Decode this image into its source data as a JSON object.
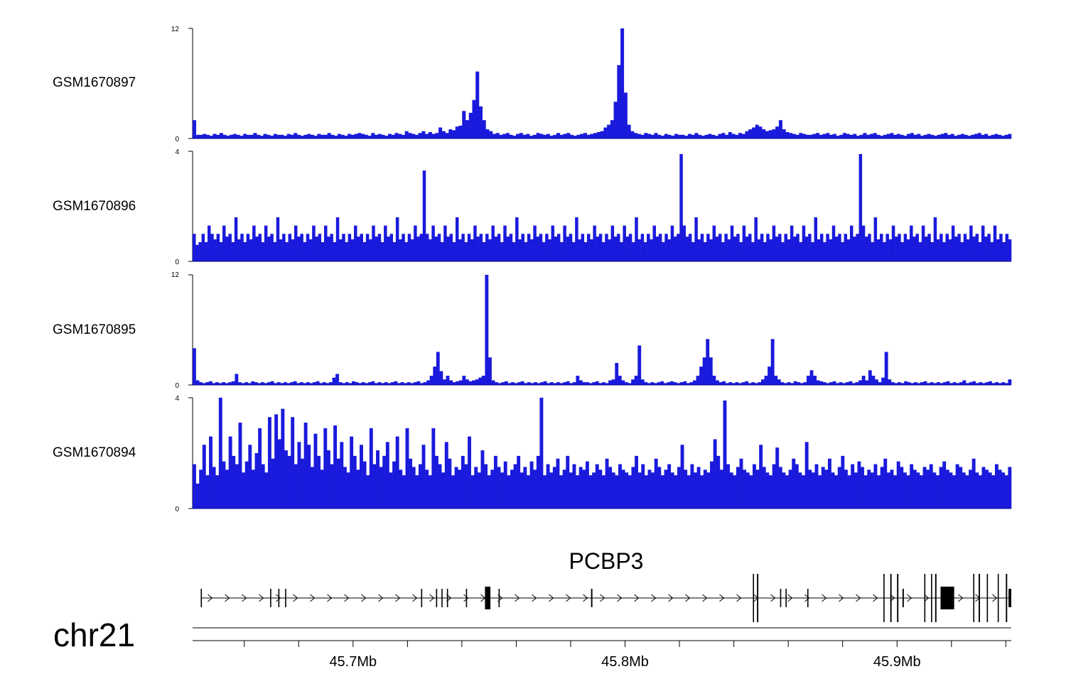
{
  "chart_data": {
    "type": "area",
    "title": "",
    "chromosome": "chr21",
    "region_mb": [
      45.641,
      45.942
    ],
    "bin_mb": 0.0015,
    "fill_color": "#1a1adc",
    "stroke_color": "#00008b",
    "tracks": [
      {
        "name": "GSM1670897",
        "ylim": [
          0,
          12
        ],
        "ytick_labels": [
          "12",
          "0"
        ],
        "values": [
          2,
          0.4,
          0.4,
          0.5,
          0.4,
          0.3,
          0.5,
          0.4,
          0.6,
          0.4,
          0.3,
          0.4,
          0.5,
          0.4,
          0.3,
          0.5,
          0.4,
          0.4,
          0.6,
          0.4,
          0.3,
          0.5,
          0.4,
          0.3,
          0.5,
          0.4,
          0.4,
          0.3,
          0.5,
          0.4,
          0.6,
          0.4,
          0.3,
          0.4,
          0.5,
          0.4,
          0.3,
          0.5,
          0.4,
          0.4,
          0.6,
          0.4,
          0.3,
          0.5,
          0.4,
          0.3,
          0.5,
          0.4,
          0.5,
          0.6,
          0.5,
          0.4,
          0.3,
          0.6,
          0.4,
          0.5,
          0.4,
          0.3,
          0.5,
          0.4,
          0.6,
          0.5,
          0.4,
          0.8,
          0.6,
          0.5,
          0.4,
          0.6,
          0.8,
          0.5,
          0.7,
          0.5,
          0.6,
          1.2,
          0.8,
          0.6,
          1,
          0.9,
          1.3,
          1.4,
          3,
          2,
          2.8,
          4.2,
          7.3,
          3.5,
          2,
          1,
          0.8,
          0.5,
          0.6,
          0.4,
          0.5,
          0.6,
          0.4,
          0.3,
          0.5,
          0.6,
          0.4,
          0.5,
          0.3,
          0.4,
          0.6,
          0.5,
          0.4,
          0.5,
          0.3,
          0.4,
          0.6,
          0.4,
          0.5,
          0.6,
          0.4,
          0.3,
          0.4,
          0.5,
          0.6,
          0.4,
          0.5,
          0.6,
          0.7,
          0.8,
          1.2,
          1.5,
          2,
          4,
          8,
          12,
          5,
          1.5,
          0.8,
          0.6,
          0.5,
          0.4,
          0.6,
          0.5,
          0.4,
          0.6,
          0.4,
          0.3,
          0.5,
          0.4,
          0.3,
          0.5,
          0.4,
          0.4,
          0.3,
          0.5,
          0.4,
          0.6,
          0.4,
          0.3,
          0.4,
          0.5,
          0.4,
          0.3,
          0.5,
          0.6,
          0.4,
          0.7,
          0.5,
          0.4,
          0.6,
          0.5,
          0.8,
          1,
          1.2,
          1.5,
          1.3,
          1,
          0.8,
          0.9,
          1,
          1.3,
          2,
          1,
          0.7,
          0.6,
          0.5,
          0.4,
          0.6,
          0.5,
          0.4,
          0.4,
          0.5,
          0.6,
          0.4,
          0.5,
          0.6,
          0.4,
          0.5,
          0.3,
          0.4,
          0.6,
          0.5,
          0.4,
          0.5,
          0.3,
          0.4,
          0.6,
          0.4,
          0.5,
          0.6,
          0.4,
          0.3,
          0.4,
          0.5,
          0.6,
          0.4,
          0.5,
          0.4,
          0.3,
          0.5,
          0.6,
          0.4,
          0.5,
          0.3,
          0.4,
          0.5,
          0.4,
          0.3,
          0.4,
          0.5,
          0.6,
          0.4,
          0.5,
          0.3,
          0.4,
          0.5,
          0.4,
          0.3,
          0.4,
          0.5,
          0.6,
          0.4,
          0.5,
          0.3,
          0.4,
          0.5,
          0.4,
          0.3,
          0.4,
          0.5
        ]
      },
      {
        "name": "GSM1670896",
        "ylim": [
          0,
          4
        ],
        "ytick_labels": [
          "4",
          "0"
        ],
        "values": [
          1,
          0.6,
          0.7,
          1,
          0.7,
          1.3,
          1,
          0.8,
          1,
          0.7,
          1.3,
          0.9,
          1,
          0.7,
          1.6,
          0.8,
          1,
          0.7,
          1,
          0.8,
          1.3,
          0.9,
          1,
          0.7,
          1.3,
          0.9,
          1,
          0.7,
          1.6,
          0.8,
          1,
          0.7,
          1,
          0.8,
          1.3,
          0.9,
          1,
          0.7,
          1,
          0.8,
          1.3,
          0.9,
          1,
          0.7,
          1.3,
          0.9,
          1,
          0.7,
          1.6,
          0.8,
          1,
          0.7,
          1,
          0.8,
          1.3,
          0.9,
          1,
          0.7,
          1,
          0.8,
          1.3,
          0.9,
          1,
          0.7,
          1.3,
          0.9,
          1,
          0.7,
          1.6,
          0.8,
          1,
          0.7,
          1,
          0.8,
          1.3,
          0.9,
          1,
          3.3,
          1,
          0.8,
          1.3,
          0.9,
          1,
          0.7,
          1.3,
          0.9,
          1,
          0.7,
          1.6,
          0.8,
          1,
          0.7,
          1,
          0.8,
          1.3,
          0.9,
          1,
          0.7,
          1,
          0.8,
          1.3,
          0.9,
          1,
          0.7,
          1.3,
          0.9,
          1,
          0.7,
          1.6,
          0.8,
          1,
          0.7,
          1,
          0.8,
          1.3,
          0.9,
          1,
          0.7,
          1,
          0.8,
          1.3,
          0.9,
          1,
          0.7,
          1.3,
          0.9,
          1,
          0.7,
          1.6,
          0.8,
          1,
          0.7,
          1,
          0.8,
          1.3,
          0.9,
          1,
          0.7,
          1,
          0.8,
          1.3,
          0.9,
          1,
          0.7,
          1.3,
          0.9,
          1,
          0.7,
          1.6,
          0.8,
          1,
          0.7,
          1,
          0.8,
          1.3,
          0.9,
          1,
          0.7,
          1,
          0.8,
          1.3,
          0.9,
          1,
          3.9,
          1.3,
          0.9,
          1,
          0.7,
          1.6,
          0.8,
          1,
          0.7,
          1,
          0.8,
          1.3,
          0.9,
          1,
          0.7,
          1,
          0.8,
          1.3,
          0.9,
          1,
          0.7,
          1.3,
          0.9,
          1,
          0.7,
          1.6,
          0.8,
          1,
          0.7,
          1,
          0.8,
          1.3,
          0.9,
          1,
          0.7,
          1,
          0.8,
          1.3,
          0.9,
          1,
          0.7,
          1.3,
          0.9,
          1,
          0.7,
          1.6,
          0.8,
          1,
          0.7,
          1,
          0.8,
          1.3,
          0.9,
          1,
          0.7,
          1,
          0.8,
          1.3,
          0.9,
          1,
          3.9,
          1.3,
          0.9,
          1,
          0.7,
          1.6,
          0.8,
          1,
          0.7,
          1,
          0.8,
          1.3,
          0.9,
          1,
          0.7,
          1,
          0.8,
          1.3,
          0.9,
          1,
          0.7,
          1.3,
          0.9,
          1,
          0.7,
          1.6,
          0.8,
          1,
          0.7,
          1,
          0.8,
          1.3,
          0.9,
          1,
          0.7,
          1,
          0.8,
          1.3,
          0.9,
          1,
          0.7,
          1.3,
          0.9,
          1,
          0.7,
          1.3,
          0.8,
          1,
          0.7,
          1,
          0.8
        ]
      },
      {
        "name": "GSM1670895",
        "ylim": [
          0,
          12
        ],
        "ytick_labels": [
          "12",
          "0"
        ],
        "values": [
          4,
          0.5,
          0.3,
          0.2,
          0.3,
          0.4,
          0.2,
          0.3,
          0.2,
          0.3,
          0.2,
          0.3,
          0.4,
          1.2,
          0.3,
          0.2,
          0.3,
          0.2,
          0.4,
          0.3,
          0.2,
          0.3,
          0.2,
          0.3,
          0.4,
          0.2,
          0.3,
          0.2,
          0.3,
          0.2,
          0.3,
          0.4,
          0.2,
          0.3,
          0.2,
          0.3,
          0.2,
          0.3,
          0.4,
          0.2,
          0.3,
          0.2,
          0.3,
          0.8,
          1.2,
          0.3,
          0.2,
          0.3,
          0.2,
          0.4,
          0.3,
          0.2,
          0.3,
          0.2,
          0.3,
          0.4,
          0.2,
          0.3,
          0.2,
          0.3,
          0.2,
          0.3,
          0.4,
          0.2,
          0.3,
          0.2,
          0.3,
          0.2,
          0.3,
          0.4,
          0.2,
          0.3,
          0.5,
          1,
          2,
          3.6,
          1.5,
          0.6,
          1,
          0.5,
          0.3,
          0.4,
          0.5,
          1,
          0.6,
          0.4,
          0.5,
          0.6,
          0.8,
          1,
          12,
          3,
          0.5,
          0.3,
          0.2,
          0.3,
          0.4,
          0.2,
          0.3,
          0.2,
          0.3,
          0.4,
          0.2,
          0.3,
          0.2,
          0.3,
          0.2,
          0.3,
          0.4,
          0.2,
          0.3,
          0.2,
          0.3,
          0.2,
          0.3,
          0.4,
          0.2,
          0.3,
          1,
          0.5,
          0.3,
          0.3,
          0.2,
          0.3,
          0.4,
          0.2,
          0.3,
          0.2,
          0.5,
          0.6,
          2.4,
          1,
          0.5,
          0.3,
          0.2,
          0.6,
          1,
          4.3,
          0.6,
          0.3,
          0.2,
          0.3,
          0.2,
          0.3,
          0.4,
          0.2,
          0.3,
          0.4,
          0.3,
          0.2,
          0.3,
          0.4,
          0.2,
          0.3,
          0.5,
          1,
          2,
          3,
          5,
          3,
          1,
          0.5,
          0.3,
          0.4,
          0.2,
          0.3,
          0.2,
          0.3,
          0.2,
          0.3,
          0.4,
          0.2,
          0.3,
          0.2,
          0.3,
          0.6,
          1,
          2,
          5,
          1,
          0.6,
          0.3,
          0.2,
          0.3,
          0.2,
          0.4,
          0.3,
          0.2,
          0.3,
          1,
          1.6,
          1,
          0.5,
          0.4,
          0.3,
          0.2,
          0.3,
          0.4,
          0.2,
          0.3,
          0.2,
          0.3,
          0.4,
          0.2,
          0.3,
          0.5,
          1,
          0.5,
          1.6,
          1,
          0.6,
          0.3,
          0.8,
          3.6,
          0.6,
          0.3,
          0.2,
          0.3,
          0.2,
          0.4,
          0.3,
          0.2,
          0.3,
          0.2,
          0.3,
          0.4,
          0.2,
          0.3,
          0.2,
          0.3,
          0.2,
          0.3,
          0.4,
          0.2,
          0.3,
          0.2,
          0.3,
          0.5,
          0.2,
          0.3,
          0.4,
          0.2,
          0.3,
          0.2,
          0.3,
          0.4,
          0.2,
          0.3,
          0.2,
          0.3,
          0.2,
          0.6
        ]
      },
      {
        "name": "GSM1670894",
        "ylim": [
          0,
          4
        ],
        "ytick_labels": [
          "4",
          "0"
        ],
        "values": [
          1.6,
          0.9,
          1.4,
          2.3,
          1.2,
          2.6,
          1.5,
          1.2,
          4,
          1.7,
          1.4,
          2.6,
          1.9,
          1.6,
          3.1,
          1.3,
          1.7,
          2.3,
          1.4,
          2,
          2.9,
          1.6,
          1.3,
          3.3,
          1.8,
          3.4,
          2.5,
          3.6,
          2.1,
          1.9,
          3.3,
          1.6,
          2.4,
          1.8,
          3.1,
          2.3,
          1.5,
          2.7,
          1.9,
          1.4,
          2.9,
          2.1,
          1.6,
          3,
          1.8,
          2.4,
          1.5,
          1.3,
          2.6,
          1.9,
          1.4,
          2.3,
          1.7,
          1.2,
          2.9,
          1.6,
          2.1,
          1.5,
          1.9,
          2.4,
          1.3,
          1.7,
          2.6,
          1.4,
          1.2,
          2.9,
          1.8,
          1.5,
          1.2,
          1.6,
          2.3,
          1.4,
          1.2,
          2.9,
          1.9,
          1.6,
          1.3,
          2.4,
          1.8,
          1.2,
          1.5,
          1.4,
          1.9,
          1.6,
          2.6,
          1.2,
          1.5,
          1.3,
          2.1,
          1.6,
          1.2,
          1.4,
          1.9,
          1.5,
          1.3,
          1.7,
          1.2,
          1.4,
          1.6,
          1.9,
          1.3,
          1.5,
          1.2,
          1.7,
          1.4,
          1.9,
          4,
          1.2,
          1.6,
          1.3,
          1.5,
          1.8,
          1.2,
          1.4,
          1.9,
          1.3,
          1.6,
          1.2,
          1.5,
          1.4,
          1.7,
          1.2,
          1.3,
          1.6,
          1.4,
          1.2,
          1.8,
          1.5,
          1.3,
          1.2,
          1.6,
          1.4,
          1.3,
          1.2,
          1.5,
          1.9,
          1.3,
          1.6,
          1.2,
          1.4,
          1.3,
          1.8,
          1.5,
          1.2,
          1.4,
          1.6,
          1.3,
          1.2,
          1.5,
          2.3,
          1.4,
          1.2,
          1.6,
          1.3,
          1.5,
          1.2,
          1.4,
          1.3,
          1.7,
          2.5,
          1.9,
          1.4,
          3.9,
          1.6,
          1.3,
          1.2,
          1.5,
          1.8,
          1.4,
          1.3,
          1.2,
          1.6,
          1.4,
          2.3,
          1.5,
          1.3,
          1.2,
          1.6,
          2.2,
          1.5,
          1.3,
          1.2,
          1.4,
          1.8,
          1.6,
          1.3,
          1.2,
          2.4,
          1.4,
          1.3,
          1.6,
          1.2,
          1.5,
          1.4,
          1.8,
          1.3,
          1.2,
          1.5,
          1.9,
          1.4,
          1.2,
          1.6,
          1.3,
          1.7,
          1.5,
          1.2,
          1.4,
          1.3,
          1.6,
          1.2,
          1.5,
          1.8,
          1.3,
          1.4,
          1.2,
          1.7,
          1.5,
          1.3,
          1.2,
          1.6,
          1.4,
          1.3,
          1.2,
          1.5,
          1.4,
          1.6,
          1.3,
          1.2,
          1.5,
          1.7,
          1.4,
          1.3,
          1.2,
          1.6,
          1.5,
          1.3,
          1.2,
          1.4,
          1.8,
          1.3,
          1.2,
          1.5,
          1.4,
          1.3,
          1.2,
          1.6,
          1.4,
          1.3,
          1.2,
          1.5
        ]
      }
    ],
    "gene": {
      "name": "PCBP3",
      "strand": "+",
      "start_mb": 45.644,
      "end_mb": 45.942,
      "exons_mb": [
        [
          45.644,
          45.6443
        ],
        [
          45.6695,
          45.6698
        ],
        [
          45.6725,
          45.6728
        ],
        [
          45.675,
          45.6753
        ],
        [
          45.725,
          45.7253
        ],
        [
          45.7305,
          45.7308
        ],
        [
          45.7325,
          45.7328
        ],
        [
          45.7345,
          45.7348
        ],
        [
          45.7415,
          45.7418
        ],
        [
          45.7485,
          45.7505
        ],
        [
          45.7535,
          45.7538
        ],
        [
          45.7875,
          45.788
        ],
        [
          45.847,
          45.8473
        ],
        [
          45.8485,
          45.849
        ],
        [
          45.857,
          45.8573
        ],
        [
          45.859,
          45.8593
        ],
        [
          45.867,
          45.8673
        ],
        [
          45.895,
          45.8953
        ],
        [
          45.8975,
          45.898
        ],
        [
          45.9,
          45.9005
        ],
        [
          45.902,
          45.9025
        ],
        [
          45.91,
          45.9103
        ],
        [
          45.9125,
          45.9128
        ],
        [
          45.914,
          45.9145
        ],
        [
          45.916,
          45.921
        ],
        [
          45.928,
          45.9283
        ],
        [
          45.93,
          45.9305
        ],
        [
          45.933,
          45.9333
        ],
        [
          45.937,
          45.9373
        ],
        [
          45.94,
          45.9405
        ],
        [
          45.941,
          45.942
        ]
      ],
      "tall_exons_mb": [
        45.847,
        45.8485,
        45.895,
        45.8975,
        45.9,
        45.91,
        45.9125,
        45.914,
        45.928,
        45.93,
        45.933,
        45.937,
        45.94
      ]
    },
    "xaxis": {
      "ticks_mb": [
        45.66,
        45.68,
        45.7,
        45.72,
        45.74,
        45.76,
        45.78,
        45.8,
        45.82,
        45.84,
        45.86,
        45.88,
        45.9,
        45.92,
        45.94
      ],
      "labeled_ticks_mb": [
        45.7,
        45.8,
        45.9
      ],
      "tick_labels": [
        "45.7Mb",
        "45.8Mb",
        "45.9Mb"
      ]
    }
  }
}
